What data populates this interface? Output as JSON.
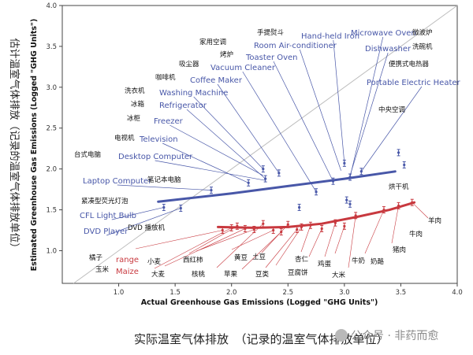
{
  "chart_data": {
    "type": "scatter",
    "xlabel": "Actual Greenhouse Gas Emissions (Logged \"GHG Units\")",
    "ylabel": "Estimated Greenhouse Gas Emissions (Logged \"GHG Units\")",
    "ylabel_zh": "估计温室气体排放（记录的温室气体排放单位）",
    "xlim": [
      0.5,
      4.0
    ],
    "ylim": [
      0.6,
      4.0
    ],
    "xticks": [
      "1.0",
      "1.5",
      "2.0",
      "2.5",
      "3.0",
      "3.5",
      "4.0"
    ],
    "yticks": [
      "1.0",
      "1.5",
      "2.0",
      "2.5",
      "3.0",
      "3.5",
      "4.0"
    ],
    "identity_line": true,
    "colors": {
      "electricity": "#4857a8",
      "food": "#c8393f",
      "diagonal": "#bdbdbd"
    },
    "series": [
      {
        "name": "",
        "color": "#4857a8",
        "points": [
          [
            3.0,
            2.07
          ],
          [
            3.05,
            1.9
          ],
          [
            3.15,
            1.97
          ],
          [
            3.48,
            2.2
          ],
          [
            2.9,
            1.85
          ],
          [
            2.75,
            1.72
          ],
          [
            2.42,
            1.95
          ],
          [
            2.28,
            2.0
          ],
          [
            2.3,
            1.88
          ],
          [
            2.15,
            1.83
          ],
          [
            1.82,
            1.74
          ],
          [
            1.4,
            1.53
          ],
          [
            1.55,
            1.52
          ],
          [
            2.6,
            1.53
          ],
          [
            3.02,
            1.62
          ],
          [
            3.05,
            1.57
          ],
          [
            3.53,
            2.05
          ]
        ],
        "fit": [
          [
            1.35,
            1.6
          ],
          [
            2.0,
            1.7
          ],
          [
            2.5,
            1.79
          ],
          [
            3.0,
            1.88
          ],
          [
            3.45,
            1.97
          ]
        ]
      },
      {
        "name": "",
        "color": "#c8393f",
        "points": [
          [
            1.92,
            1.25
          ],
          [
            2.0,
            1.28
          ],
          [
            2.05,
            1.3
          ],
          [
            2.12,
            1.27
          ],
          [
            2.2,
            1.26
          ],
          [
            2.28,
            1.33
          ],
          [
            2.37,
            1.25
          ],
          [
            2.44,
            1.23
          ],
          [
            2.5,
            1.32
          ],
          [
            2.58,
            1.26
          ],
          [
            2.62,
            1.29
          ],
          [
            2.7,
            1.31
          ],
          [
            2.8,
            1.27
          ],
          [
            2.92,
            1.34
          ],
          [
            3.0,
            1.3
          ],
          [
            3.1,
            1.43
          ],
          [
            3.35,
            1.5
          ],
          [
            3.48,
            1.55
          ],
          [
            3.6,
            1.59
          ]
        ],
        "fit": [
          [
            1.88,
            1.29
          ],
          [
            2.2,
            1.28
          ],
          [
            2.5,
            1.29
          ],
          [
            2.8,
            1.33
          ],
          [
            3.1,
            1.41
          ],
          [
            3.4,
            1.5
          ],
          [
            3.62,
            1.59
          ]
        ]
      }
    ],
    "annotations": {
      "electricity": [
        {
          "text": "Hand-held Iron",
          "x": 3.0,
          "y": 2.07
        },
        {
          "text": "Microwave Oven",
          "x": 3.05,
          "y": 1.9
        },
        {
          "text": "Dishwasher",
          "x": 3.05,
          "y": 1.92
        },
        {
          "text": "Room Air-conditioner",
          "x": 2.97,
          "y": 1.98
        },
        {
          "text": "Toaster Oven",
          "x": 2.9,
          "y": 1.85
        },
        {
          "text": "Vacuum Cleaner",
          "x": 2.75,
          "y": 1.72
        },
        {
          "text": "Portable Electric Heater",
          "x": 3.15,
          "y": 1.97
        },
        {
          "text": "Coffee Maker",
          "x": 2.42,
          "y": 1.95
        },
        {
          "text": "Washing Machine",
          "x": 2.28,
          "y": 2.0
        },
        {
          "text": "Refrigerator",
          "x": 2.3,
          "y": 1.88
        },
        {
          "text": "Freezer",
          "x": 2.28,
          "y": 1.92
        },
        {
          "text": "Television",
          "x": 2.15,
          "y": 1.83
        },
        {
          "text": "Desktop Computer",
          "x": 2.3,
          "y": 1.86
        },
        {
          "text": "Laptop Computer",
          "x": 1.82,
          "y": 1.74
        },
        {
          "text": "CFL Light Bulb",
          "x": 1.4,
          "y": 1.53
        },
        {
          "text": "DVD Player",
          "x": 1.55,
          "y": 1.52
        }
      ],
      "food": [
        {
          "text": "range",
          "x": 1.92,
          "y": 1.25
        },
        {
          "text": "Maize",
          "x": 2.0,
          "y": 1.28
        }
      ]
    },
    "zh_labels": [
      {
        "text": "手提熨斗"
      },
      {
        "text": "家用空调"
      },
      {
        "text": "烤炉"
      },
      {
        "text": "吸尘器"
      },
      {
        "text": "咖啡机"
      },
      {
        "text": "洗衣机"
      },
      {
        "text": "冰箱"
      },
      {
        "text": "冰柜"
      },
      {
        "text": "电视机"
      },
      {
        "text": "台式电脑"
      },
      {
        "text": "笔记本电脑"
      },
      {
        "text": "紧凑型荧光灯泡"
      },
      {
        "text": "DVD 播放机"
      },
      {
        "text": "微波炉"
      },
      {
        "text": "洗碗机"
      },
      {
        "text": "便携式电热器"
      },
      {
        "text": "中央空调"
      },
      {
        "text": "烘干机"
      },
      {
        "text": "羊肉"
      },
      {
        "text": "牛肉"
      },
      {
        "text": "猪肉"
      },
      {
        "text": "牛奶"
      },
      {
        "text": "奶酪"
      },
      {
        "text": "大米"
      },
      {
        "text": "鸡蛋"
      },
      {
        "text": "杏仁"
      },
      {
        "text": "豆腐饼"
      },
      {
        "text": "土豆"
      },
      {
        "text": "豆类"
      },
      {
        "text": "黄豆"
      },
      {
        "text": "苹果"
      },
      {
        "text": "西红柿"
      },
      {
        "text": "核桃"
      },
      {
        "text": "小麦"
      },
      {
        "text": "大麦"
      },
      {
        "text": "橘子"
      },
      {
        "text": "玉米"
      }
    ]
  },
  "caption": "实际温室气体排放　（记录的温室气体排放单位）",
  "watermark": "公众号 · 非药而愈"
}
